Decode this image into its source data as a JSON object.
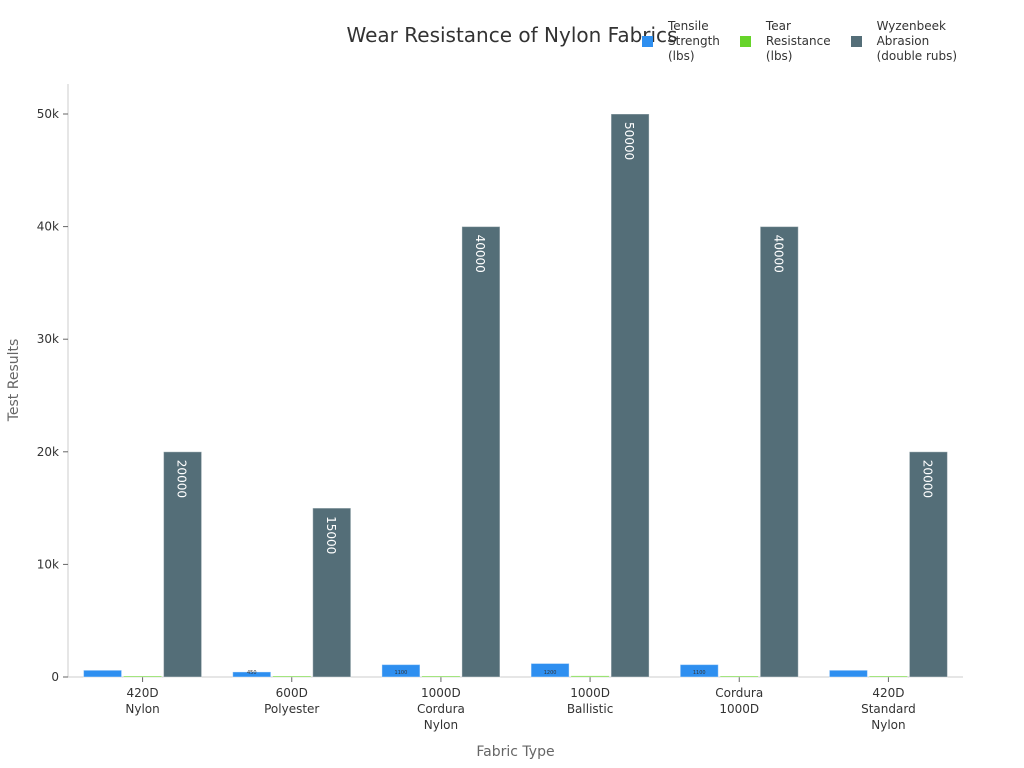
{
  "chart_data": {
    "type": "bar",
    "title": "Wear Resistance of Nylon Fabrics",
    "xlabel": "Fabric Type",
    "ylabel": "Test Results",
    "ylim": [
      0,
      52500
    ],
    "yticks": [
      0,
      10000,
      20000,
      30000,
      40000,
      50000
    ],
    "ytick_labels": [
      "0",
      "10k",
      "20k",
      "30k",
      "40k",
      "50k"
    ],
    "categories": [
      "420D\nNylon",
      "600D\nPolyester",
      "1000D\nCordura\nNylon",
      "1000D\nBallistic",
      "Cordura\n1000D",
      "420D\nStandard\nNylon"
    ],
    "series": [
      {
        "name": "Tensile\nStrength\n(lbs)",
        "color": "#2e8ff0",
        "values": [
          600,
          450,
          1100,
          1200,
          1100,
          600
        ],
        "labels": [
          "",
          "450",
          "1100",
          "1200",
          "1100",
          ""
        ]
      },
      {
        "name": "Tear\nResistance\n(lbs)",
        "color": "#66d42a",
        "values": [
          25,
          20,
          80,
          100,
          80,
          25
        ],
        "labels": [
          "",
          "",
          "",
          "",
          "",
          ""
        ]
      },
      {
        "name": "Wyzenbeek\nAbrasion\n(double rubs)",
        "color": "#546e78",
        "values": [
          20000,
          15000,
          40000,
          50000,
          40000,
          20000
        ],
        "labels": [
          "20000",
          "15000",
          "40000",
          "50000",
          "40000",
          "20000"
        ]
      }
    ],
    "legend": "top-right",
    "grid": false
  }
}
